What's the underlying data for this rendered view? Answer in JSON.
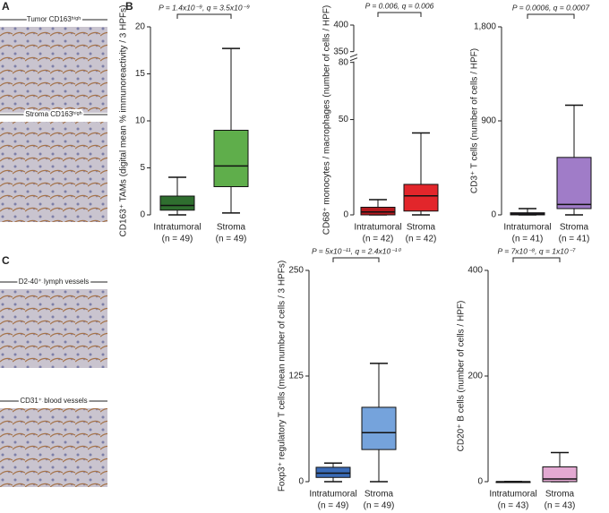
{
  "panels": [
    "A",
    "B",
    "C"
  ],
  "images": [
    "Tumor CD163ʰⁱᵍʰ",
    "Stroma CD163ʰⁱᵍʰ",
    "D2-40⁺ lymph vessels",
    "CD31⁺ blood vessels"
  ],
  "chart_data": [
    {
      "type": "box",
      "ylabel": "CD163⁺ TAMs (digital mean % immunoreactivity / 3 HPFs)",
      "annotation": "P = 1.4x10⁻⁹, q = 3.5x10⁻⁹",
      "ylim": [
        0,
        20
      ],
      "yticks": [
        0,
        5,
        10,
        15,
        20
      ],
      "groups": [
        {
          "name": "Intratumoral",
          "n_label": "(n = 49)",
          "color": "#2f6e2f",
          "min": 0,
          "q1": 0.5,
          "median": 1.0,
          "q3": 2.0,
          "max": 4.0
        },
        {
          "name": "Stroma",
          "n_label": "(n = 49)",
          "color": "#5fae4b",
          "min": 0.2,
          "q1": 3.0,
          "median": 5.2,
          "q3": 9.0,
          "max": 17.7
        }
      ]
    },
    {
      "type": "box",
      "ylabel": "CD68⁺ monocytes / macrophages (number of cells / HPF)",
      "annotation": "P = 0.006, q = 0.006",
      "ylim": [
        0,
        400
      ],
      "ybreak": [
        80,
        350
      ],
      "yticks": [
        0,
        50,
        80,
        350,
        400
      ],
      "groups": [
        {
          "name": "Intratumoral",
          "n_label": "(n = 42)",
          "color": "#b3191e",
          "min": 0,
          "q1": 0,
          "median": 1.5,
          "q3": 4,
          "max": 8
        },
        {
          "name": "Stroma",
          "n_label": "(n = 42)",
          "color": "#e2262b",
          "min": 0,
          "q1": 2,
          "median": 10,
          "q3": 16,
          "max": 43
        }
      ]
    },
    {
      "type": "box",
      "ylabel": "CD3⁺ T cells (number of cells / HPF)",
      "annotation": "P = 0.0006, q = 0.0007",
      "ylim": [
        0,
        1800
      ],
      "yticks": [
        0,
        900,
        {
          "value": 1800,
          "label": "1,800"
        }
      ],
      "groups": [
        {
          "name": "Intratumoral",
          "n_label": "(n = 41)",
          "color": "#6f4a98",
          "min": 0,
          "q1": 0,
          "median": 10,
          "q3": 20,
          "max": 60
        },
        {
          "name": "Stroma",
          "n_label": "(n = 41)",
          "color": "#a07cc8",
          "min": 0,
          "q1": 60,
          "median": 100,
          "q3": 550,
          "max": 1050
        }
      ]
    },
    {
      "type": "box",
      "ylabel": "Foxp3⁺ regulatory T cells (mean number of cells / 3 HPFs)",
      "annotation": "P = 5x10⁻¹¹, q = 2.4x10⁻¹⁰",
      "ylim": [
        0,
        250
      ],
      "yticks": [
        0,
        125,
        250
      ],
      "groups": [
        {
          "name": "Intratumoral",
          "n_label": "(n = 49)",
          "color": "#3b6cb8",
          "min": 0,
          "q1": 5,
          "median": 10,
          "q3": 17,
          "max": 22
        },
        {
          "name": "Stroma",
          "n_label": "(n = 49)",
          "color": "#75a3dc",
          "min": 0,
          "q1": 38,
          "median": 58,
          "q3": 88,
          "max": 140
        }
      ]
    },
    {
      "type": "box",
      "ylabel": "CD20⁺ B cells (number of cells / HPF)",
      "annotation": "P = 7x10⁻⁸, q = 1x10⁻⁷",
      "ylim": [
        0,
        400
      ],
      "yticks": [
        0,
        200,
        400
      ],
      "groups": [
        {
          "name": "Intratumoral",
          "n_label": "(n = 43)",
          "color": "#8d3a72",
          "min": 0,
          "q1": 0,
          "median": 0,
          "q3": 0,
          "max": 0
        },
        {
          "name": "Stroma",
          "n_label": "(n = 43)",
          "color": "#e3a9d2",
          "min": 0,
          "q1": 0,
          "median": 5,
          "q3": 28,
          "max": 55
        }
      ]
    }
  ]
}
